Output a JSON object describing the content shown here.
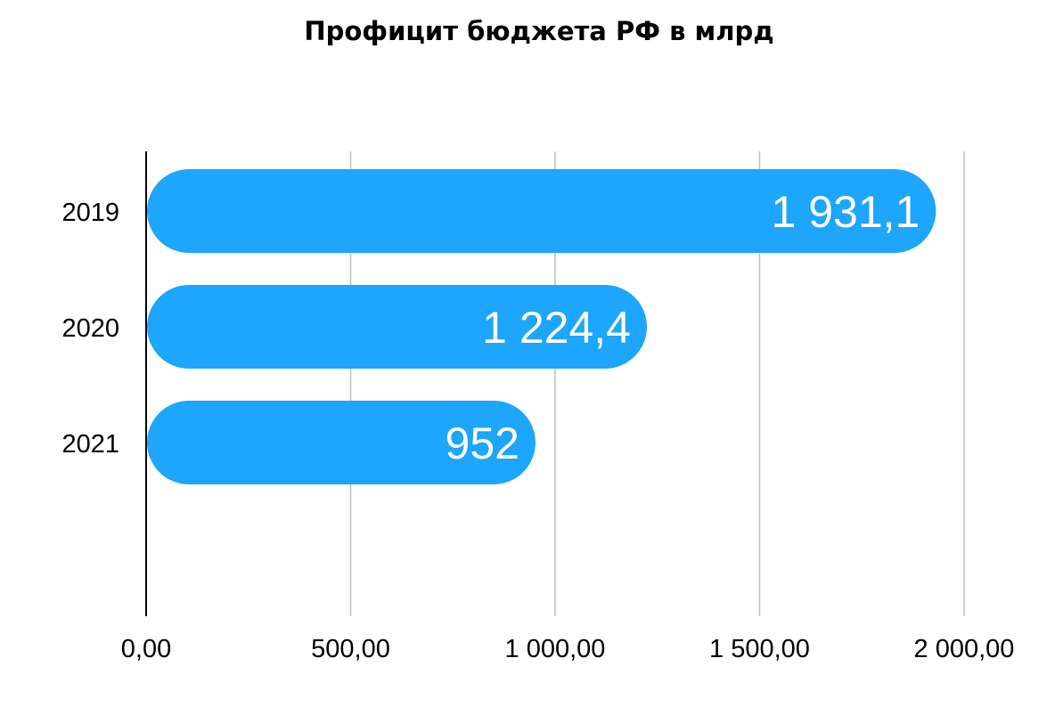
{
  "chart_data": {
    "type": "bar",
    "orientation": "horizontal",
    "title": "Профицит бюджета РФ в млрд",
    "categories": [
      "2019",
      "2020",
      "2021"
    ],
    "values": [
      1931.1,
      1224.4,
      952
    ],
    "value_labels": [
      "1 931,1",
      "1 224,4",
      "952"
    ],
    "xlim": [
      0,
      2000
    ],
    "x_ticks": [
      0,
      500,
      1000,
      1500,
      2000
    ],
    "x_tick_labels": [
      "0,00",
      "500,00",
      "1 000,00",
      "1 500,00",
      "2 000,00"
    ],
    "grid": true,
    "bar_color": "#1EA5FC",
    "grid_color": "#BFBFBF",
    "axis_color": "#000000"
  }
}
